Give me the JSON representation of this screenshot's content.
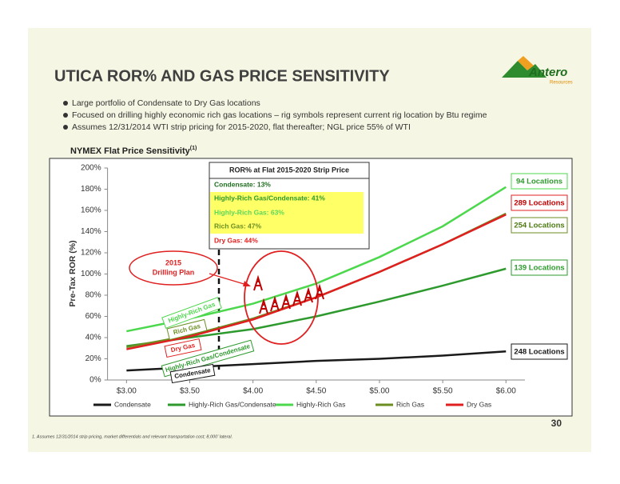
{
  "title": "UTICA ROR% AND GAS PRICE SENSITIVITY",
  "logo": {
    "name": "Antero",
    "sub": "Resources"
  },
  "bullets": [
    "Large portfolio of Condensate to Dry Gas locations",
    "Focused on drilling highly economic rich gas locations – rig symbols represent current rig location by Btu regime",
    "Assumes 12/31/2014 WTI strip pricing for 2015-2020, flat thereafter; NGL price 55% of WTI"
  ],
  "chart_heading": {
    "text": "NYMEX Flat Price Sensitivity",
    "sup": "(1)"
  },
  "footnote": "1.  Assumes 12/31/2014 strip pricing, market differentials and relevant transportation cost; 8,000’ lateral.",
  "page_number": "30",
  "chart_data": {
    "type": "line",
    "y_label": "Pre-Tax ROR (%)",
    "x": [
      3.0,
      3.5,
      4.0,
      4.5,
      5.0,
      5.5,
      6.0
    ],
    "series": [
      {
        "name": "Condensate",
        "color": "#1a1a1a",
        "values": [
          9,
          12,
          15,
          18,
          20,
          23,
          27
        ]
      },
      {
        "name": "Highly-Rich Gas/Condensate",
        "color": "#2e9a2e",
        "values": [
          32,
          40,
          48,
          60,
          74,
          89,
          105
        ]
      },
      {
        "name": "Highly-Rich Gas",
        "color": "#4cd84c",
        "values": [
          46,
          58,
          72,
          91,
          116,
          145,
          182
        ]
      },
      {
        "name": "Rich Gas",
        "color": "#6b8e23",
        "values": [
          31,
          42,
          58,
          78,
          102,
          128,
          157
        ]
      },
      {
        "name": "Dry Gas",
        "color": "#e02020",
        "values": [
          29,
          41,
          57,
          78,
          102,
          128,
          156
        ]
      }
    ],
    "xlim": [
      2.85,
      6.15
    ],
    "ylim": [
      0,
      200
    ],
    "xticks": [
      {
        "value": 3.0,
        "label": "$3.00"
      },
      {
        "value": 3.5,
        "label": "$3.50"
      },
      {
        "value": 4.0,
        "label": "$4.00"
      },
      {
        "value": 4.5,
        "label": "$4.50"
      },
      {
        "value": 5.0,
        "label": "$5.00"
      },
      {
        "value": 5.5,
        "label": "$5.50"
      },
      {
        "value": 6.0,
        "label": "$6.00"
      }
    ],
    "yticks": [
      {
        "value": 0,
        "label": "0%"
      },
      {
        "value": 20,
        "label": "20%"
      },
      {
        "value": 40,
        "label": "40%"
      },
      {
        "value": 60,
        "label": "60%"
      },
      {
        "value": 80,
        "label": "80%"
      },
      {
        "value": 100,
        "label": "100%"
      },
      {
        "value": 120,
        "label": "120%"
      },
      {
        "value": 140,
        "label": "140%"
      },
      {
        "value": 160,
        "label": "160%"
      },
      {
        "value": 180,
        "label": "180%"
      },
      {
        "value": 200,
        "label": "200%"
      }
    ],
    "grid": false,
    "legend": "bottom",
    "ror_box": {
      "title": "ROR% at Flat 2015-2020 Strip Price",
      "items": [
        "Condensate: 13%",
        "Highly-Rich Gas/Condensate: 41%",
        "Highly-Rich Gas: 63%",
        "Rich Gas: 47%",
        "Dry Gas: 44%"
      ]
    },
    "drilling_plan": [
      "2015",
      "Drilling Plan"
    ],
    "location_labels": [
      "94 Locations",
      "289 Locations",
      "254 Locations",
      "139 Locations",
      "248 Locations"
    ],
    "curve_labels": [
      "Highly-Rich Gas",
      "Rich Gas",
      "Dry Gas",
      "Highly-Rich Gas/Condensate",
      "Condensate"
    ]
  }
}
